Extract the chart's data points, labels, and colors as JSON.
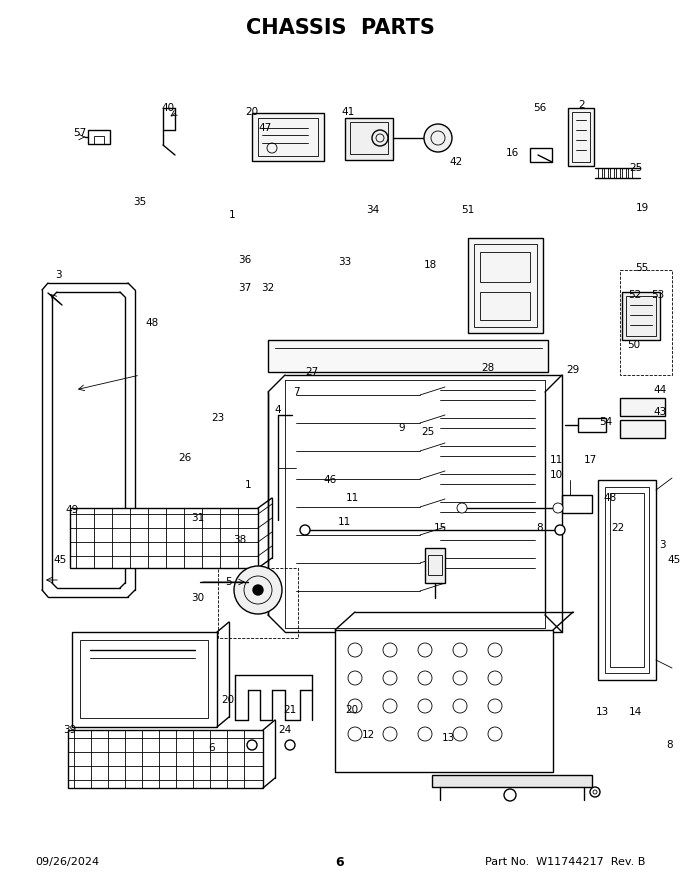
{
  "title": "CHASSIS  PARTS",
  "footer_left": "09/26/2024",
  "footer_center": "6",
  "footer_right": "Part No.  W11744217  Rev. B",
  "bg_color": "#ffffff",
  "line_color": "#000000",
  "title_fontsize": 14,
  "footer_fontsize": 8,
  "label_fontsize": 7.5
}
